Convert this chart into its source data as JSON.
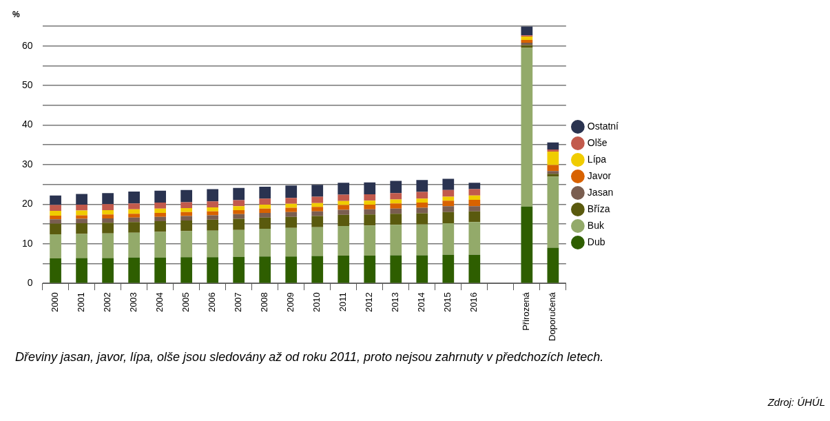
{
  "chart_data": {
    "type": "bar",
    "stacked": true,
    "ylabel": "%",
    "categories": [
      "2000",
      "2001",
      "2002",
      "2003",
      "2004",
      "2005",
      "2006",
      "2007",
      "2008",
      "2009",
      "2010",
      "2011",
      "2012",
      "2013",
      "2014",
      "2015",
      "2016",
      null,
      "Přirozená",
      "Doporučená"
    ],
    "series": [
      {
        "name": "Dub",
        "color": "#2e5e00",
        "values": [
          6.3,
          6.4,
          6.4,
          6.5,
          6.5,
          6.6,
          6.6,
          6.7,
          6.8,
          6.8,
          6.9,
          7.0,
          7.0,
          7.1,
          7.1,
          7.2,
          7.2,
          null,
          19.4,
          9.0
        ]
      },
      {
        "name": "Buk",
        "color": "#93aa6a",
        "values": [
          6.1,
          6.1,
          6.2,
          6.3,
          6.5,
          6.6,
          6.7,
          6.8,
          7.0,
          7.2,
          7.3,
          7.5,
          7.6,
          7.7,
          7.8,
          8.0,
          8.3,
          null,
          40.1,
          18.0
        ]
      },
      {
        "name": "Bříza",
        "color": "#5a5a0e",
        "values": [
          2.7,
          2.7,
          2.7,
          2.7,
          2.7,
          2.7,
          2.8,
          2.8,
          2.8,
          2.8,
          2.8,
          2.8,
          2.8,
          2.8,
          2.8,
          2.8,
          2.7,
          null,
          0.7,
          0.7
        ]
      },
      {
        "name": "Jasan",
        "color": "#7a5e50",
        "values": [
          1.1,
          1.1,
          1.1,
          1.1,
          1.1,
          1.1,
          1.1,
          1.2,
          1.2,
          1.2,
          1.2,
          1.3,
          1.3,
          1.3,
          1.4,
          1.5,
          1.3,
          null,
          0.6,
          0.7
        ]
      },
      {
        "name": "Javor",
        "color": "#d86200",
        "values": [
          0.9,
          0.9,
          1.0,
          1.0,
          1.0,
          1.0,
          1.0,
          1.0,
          1.1,
          1.1,
          1.1,
          1.2,
          1.2,
          1.3,
          1.3,
          1.4,
          1.6,
          null,
          0.7,
          1.5
        ]
      },
      {
        "name": "Lípa",
        "color": "#f0cc00",
        "values": [
          1.2,
          1.2,
          1.1,
          1.1,
          1.1,
          1.0,
          1.0,
          1.0,
          1.0,
          1.0,
          1.0,
          1.0,
          1.0,
          1.0,
          1.0,
          1.0,
          1.1,
          null,
          0.9,
          3.4
        ]
      },
      {
        "name": "Olše",
        "color": "#c25a4c",
        "values": [
          1.5,
          1.5,
          1.5,
          1.5,
          1.5,
          1.5,
          1.5,
          1.5,
          1.5,
          1.5,
          1.6,
          1.6,
          1.6,
          1.6,
          1.7,
          1.7,
          1.6,
          null,
          0.3,
          0.5
        ]
      },
      {
        "name": "Ostatní",
        "color": "#2a3350",
        "values": [
          2.4,
          2.7,
          2.8,
          3.0,
          3.0,
          3.1,
          3.1,
          3.1,
          3.0,
          3.1,
          3.0,
          3.0,
          3.0,
          3.1,
          3.0,
          2.8,
          1.6,
          null,
          2.2,
          1.8
        ]
      }
    ],
    "ylim": [
      0,
      65
    ],
    "yticks": [
      0,
      {
        "value": 5,
        "label": null
      },
      10,
      {
        "value": 15,
        "label": null
      },
      20,
      {
        "value": 25,
        "label": null
      },
      30,
      {
        "value": 35,
        "label": null
      },
      40,
      {
        "value": 45,
        "label": null
      },
      50,
      {
        "value": 55,
        "label": null
      },
      60,
      {
        "value": 65,
        "label": null
      }
    ],
    "grid": "y",
    "legend": "right",
    "annotations": [
      "Dřeviny jasan, javor, lípa, olše jsou sledovány až od roku 2011, proto nejsou zahrnuty v předchozích letech.",
      "Zdroj: ÚHÚL"
    ]
  }
}
